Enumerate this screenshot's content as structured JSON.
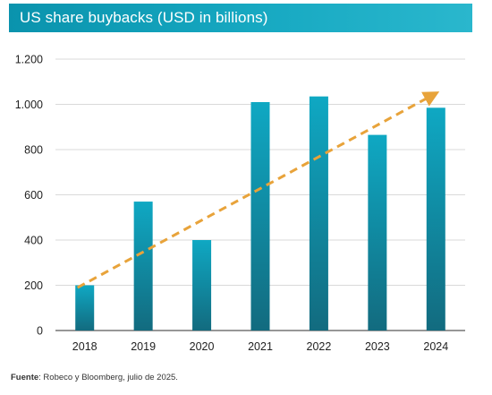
{
  "title": "US share buybacks (USD in billions)",
  "source": {
    "label": "Fuente",
    "text": ": Robeco y Bloomberg, julio de 2025."
  },
  "colors": {
    "title_bar": "#0a93ad",
    "bar_top": "#0fa8c3",
    "bar_bottom": "#126b7f",
    "trend": "#e8a33a",
    "grid": "#d9d9d9",
    "axis": "#595959"
  },
  "chart_data": {
    "type": "bar",
    "title": "US share buybacks (USD in billions)",
    "categories": [
      "2018",
      "2019",
      "2020",
      "2021",
      "2022",
      "2023",
      "2024"
    ],
    "values": [
      200,
      570,
      400,
      1010,
      1035,
      865,
      985
    ],
    "ylim": [
      0,
      1200
    ],
    "yticks": [
      0,
      200,
      400,
      600,
      800,
      1000,
      1200
    ],
    "ytick_labels": [
      "0",
      "200",
      "400",
      "600",
      "800",
      "1.000",
      "1.200"
    ],
    "grid": true,
    "trendline": {
      "style": "dashed-arrow",
      "start": 190,
      "end": 1040
    }
  }
}
